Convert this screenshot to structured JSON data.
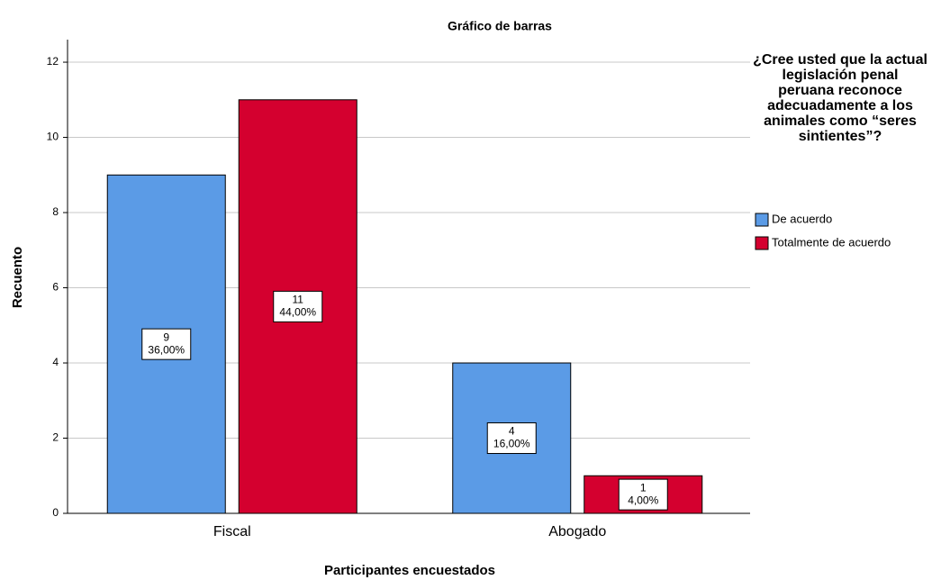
{
  "chart_data": {
    "type": "bar",
    "title": "Gráfico de barras",
    "x_label": "Participantes encuestados",
    "y_label": "Recuento",
    "legend_title": "¿Cree usted que la actual legislación penal peruana reconoce adecuadamente a los animales como “seres sintientes”?",
    "categories": [
      "Fiscal",
      "Abogado"
    ],
    "series": [
      {
        "name": "De acuerdo",
        "color": "#5b9be6",
        "values": [
          9,
          4
        ],
        "percent_labels": [
          "36,00%",
          "16,00%"
        ]
      },
      {
        "name": "Totalmente de acuerdo",
        "color": "#d4002f",
        "values": [
          11,
          1
        ],
        "percent_labels": [
          "44,00%",
          "4,00%"
        ]
      }
    ],
    "ylim": [
      0,
      12.6
    ],
    "yticks": [
      0,
      2,
      4,
      6,
      8,
      10,
      12
    ],
    "grid": true,
    "legend": "right"
  }
}
